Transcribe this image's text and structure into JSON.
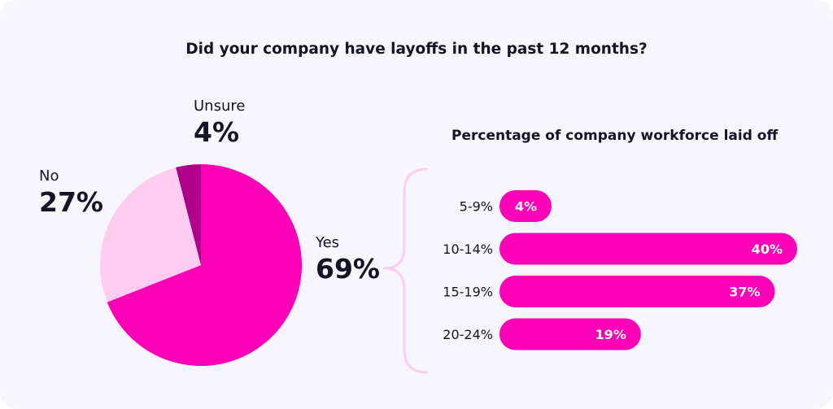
{
  "title": "Did your company have layoffs in the past 12 months?",
  "chart_data": [
    {
      "type": "pie",
      "title": "Did your company have layoffs in the past 12 months?",
      "slices": [
        {
          "label": "Yes",
          "value": 69,
          "display": "69%",
          "color": "#ff00b8"
        },
        {
          "label": "No",
          "value": 27,
          "display": "27%",
          "color": "#ffcdf0"
        },
        {
          "label": "Unsure",
          "value": 4,
          "display": "4%",
          "color": "#b0008a"
        }
      ]
    },
    {
      "type": "bar",
      "orientation": "horizontal",
      "title": "Percentage of company workforce laid off",
      "categories": [
        "5-9%",
        "10-14%",
        "15-19%",
        "20-24%"
      ],
      "values": [
        4,
        40,
        37,
        19
      ],
      "labels": [
        "4%",
        "40%",
        "37%",
        "19%"
      ],
      "xlim": [
        0,
        40
      ],
      "color": "#ff00b8",
      "bracket_color": "#ffcdf0"
    }
  ]
}
